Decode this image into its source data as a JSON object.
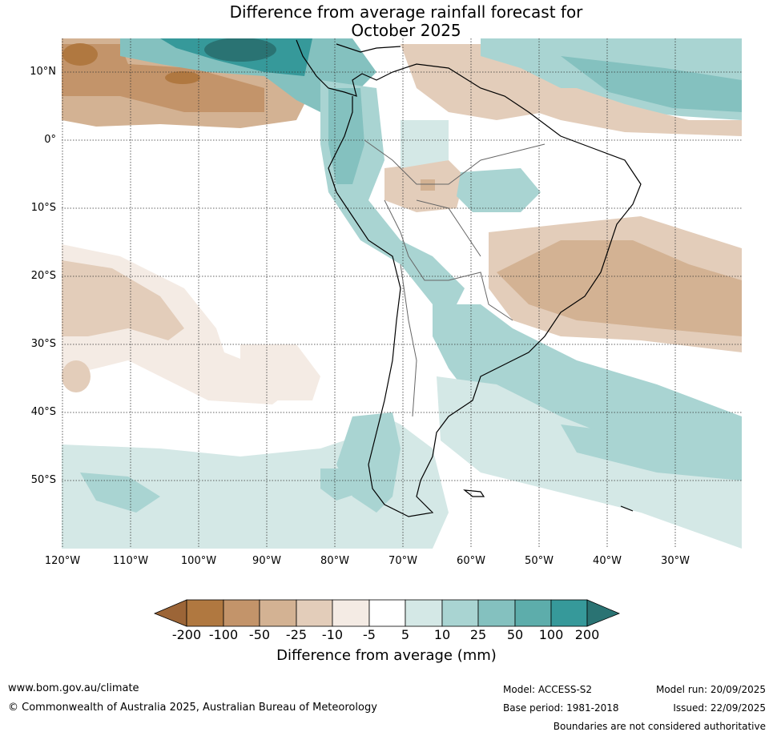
{
  "title": {
    "line1": "Difference from average rainfall forecast for",
    "line2": "October 2025"
  },
  "map": {
    "region": "South America",
    "lat_labels": [
      "10°N",
      "0°",
      "10°S",
      "20°S",
      "30°S",
      "40°S",
      "50°S"
    ],
    "lon_labels": [
      "120°W",
      "110°W",
      "100°W",
      "90°W",
      "80°W",
      "70°W",
      "60°W",
      "50°W",
      "40°W",
      "30°W"
    ]
  },
  "legend": {
    "title": "Difference from average (mm)",
    "ticks": [
      "-200",
      "-100",
      "-50",
      "-25",
      "-10",
      "-5",
      "5",
      "10",
      "25",
      "50",
      "100",
      "200"
    ],
    "colors": [
      "#9c6537",
      "#b07840",
      "#c3946a",
      "#d3b293",
      "#e3cdba",
      "#f4ebe4",
      "#ffffff",
      "#d4e8e6",
      "#a9d4d2",
      "#84c1bf",
      "#5dadab",
      "#36999a",
      "#2a7373"
    ]
  },
  "footer": {
    "website": "www.bom.gov.au/climate",
    "copyright": "© Commonwealth of Australia 2025, Australian Bureau of Meteorology",
    "model": "Model: ACCESS-S2",
    "base_period": "Base period: 1981-2018",
    "model_run": "Model run: 20/09/2025",
    "issued": "Issued: 22/09/2025",
    "disclaimer": "Boundaries are not considered authoritative"
  }
}
